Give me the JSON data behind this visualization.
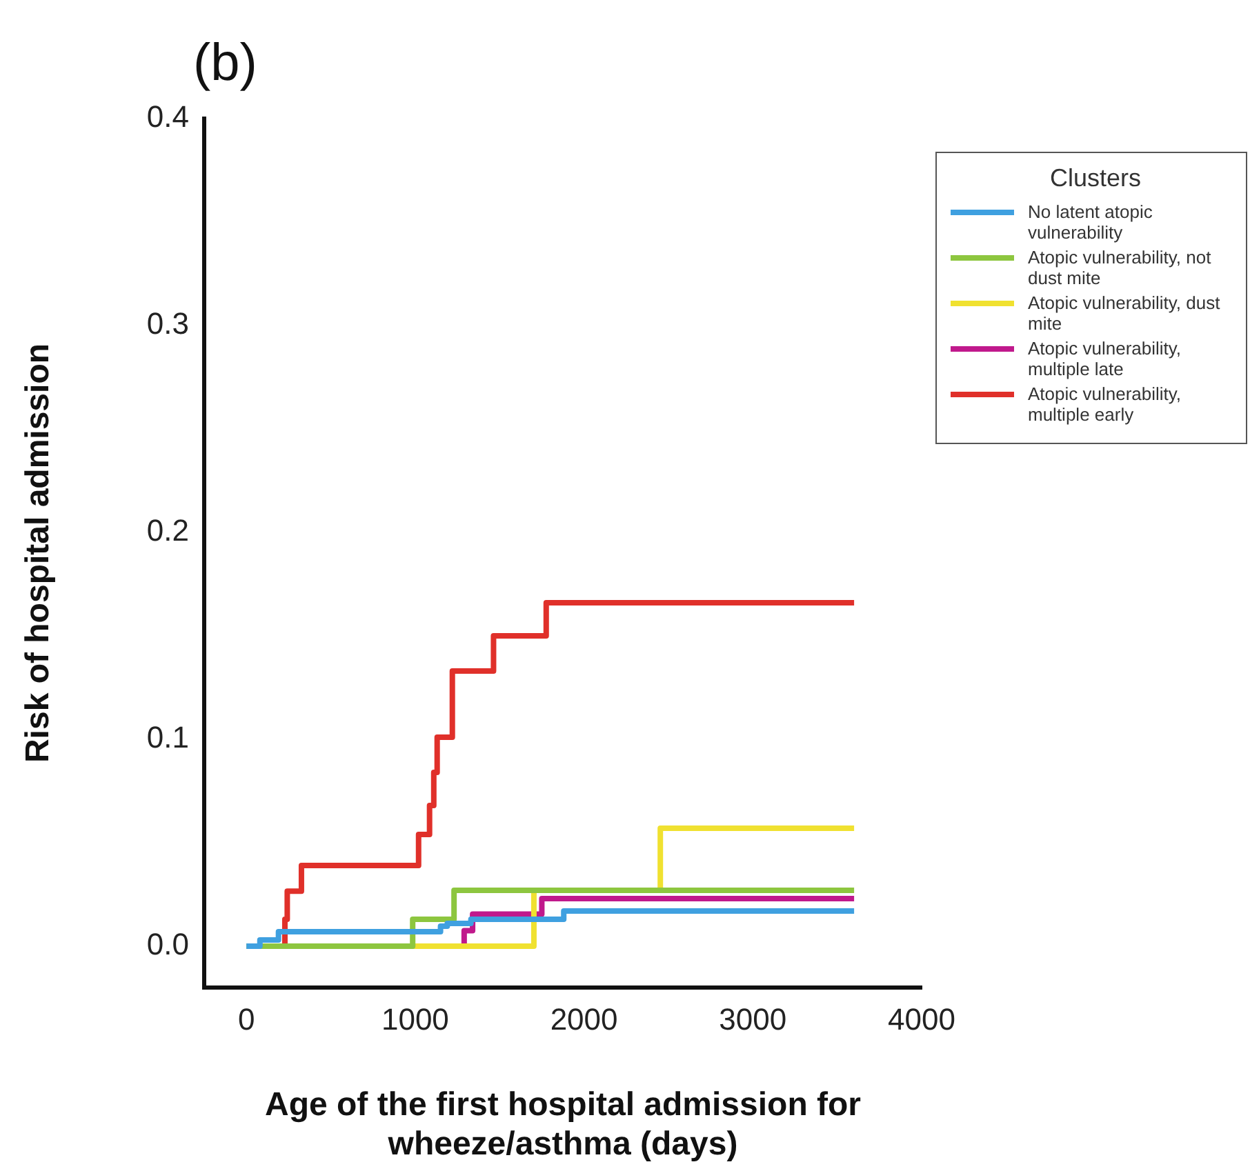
{
  "chart_data": {
    "type": "step",
    "title": "(b)",
    "xlabel": "Age of the first hospital admission for wheeze/asthma (days)",
    "ylabel": "Risk of hospital admission",
    "legend_title": "Clusters",
    "legend": "right",
    "grid": false,
    "xlim": [
      -250,
      4000
    ],
    "xticks": [
      0,
      1000,
      2000,
      3000,
      4000
    ],
    "ylim": [
      -0.02,
      0.4
    ],
    "yticks": [
      {
        "value": 0,
        "label": "0.0"
      },
      0.1,
      0.2,
      0.3,
      0.4
    ],
    "series": [
      {
        "name": "No latent atopic vulnerability",
        "color": "#3fa0e0",
        "x": [
          0,
          80,
          190,
          1150,
          1190,
          1330,
          1880,
          3600
        ],
        "values": [
          0,
          0.003,
          0.007,
          0.0097,
          0.011,
          0.013,
          0.017,
          0.017
        ]
      },
      {
        "name": "Atopic vulnerability, not dust mite",
        "color": "#8dc63f",
        "x": [
          0,
          985,
          1230,
          3600
        ],
        "values": [
          0,
          0.013,
          0.027,
          0.027
        ]
      },
      {
        "name": "Atopic vulnerability, dust mite",
        "color": "#f0e130",
        "x": [
          0,
          1703,
          2452,
          3600
        ],
        "values": [
          0,
          0.027,
          0.057,
          0.057
        ]
      },
      {
        "name": "Atopic vulnerability, multiple late",
        "color": "#c0198c",
        "x": [
          0,
          1290,
          1340,
          1750,
          3600
        ],
        "values": [
          0,
          0.0075,
          0.0155,
          0.023,
          0.023
        ]
      },
      {
        "name": "Atopic vulnerability, multiple early",
        "color": "#e0302a",
        "x": [
          0,
          228,
          242,
          326,
          1020,
          1085,
          1110,
          1130,
          1220,
          1464,
          1776,
          3600
        ],
        "values": [
          0,
          0.013,
          0.0266,
          0.039,
          0.054,
          0.068,
          0.084,
          0.101,
          0.133,
          0.15,
          0.166,
          0.166
        ]
      }
    ]
  }
}
